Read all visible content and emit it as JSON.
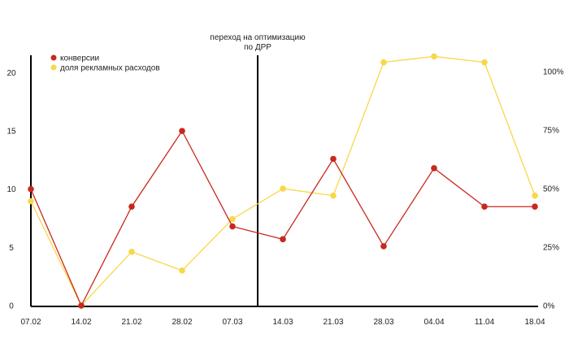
{
  "chart_data": {
    "type": "line",
    "categories": [
      "07.02",
      "14.02",
      "21.02",
      "28.02",
      "07.03",
      "14.03",
      "21.03",
      "28.03",
      "04.04",
      "11.04",
      "18.04"
    ],
    "annotation": {
      "line1": "переход на оптимизацию",
      "line2": "по ДРР",
      "between": [
        "07.03",
        "14.03"
      ]
    },
    "left_axis": {
      "ticks": [
        0,
        5,
        10,
        15,
        20
      ],
      "tick_labels": [
        "0",
        "5",
        "10",
        "15",
        "20"
      ],
      "ylim": [
        0,
        21.5
      ]
    },
    "right_axis": {
      "ticks": [
        0,
        25,
        50,
        75,
        100
      ],
      "tick_labels": [
        "0%",
        "25%",
        "50%",
        "75%",
        "100%"
      ],
      "ylim": [
        0,
        107
      ]
    },
    "series": [
      {
        "name": "конверсии",
        "axis": "left",
        "color": "#c8281e",
        "values": [
          10,
          0,
          8.5,
          15,
          6.8,
          5.7,
          12.6,
          5.1,
          11.8,
          8.5,
          8.5
        ]
      },
      {
        "name": "доля рекламных расходов",
        "axis": "right",
        "color": "#f7d84a",
        "values": [
          44.6,
          0,
          23,
          15,
          37,
          50,
          47,
          104,
          106.5,
          104,
          47
        ]
      }
    ],
    "legend": "top-left",
    "grid": false
  }
}
